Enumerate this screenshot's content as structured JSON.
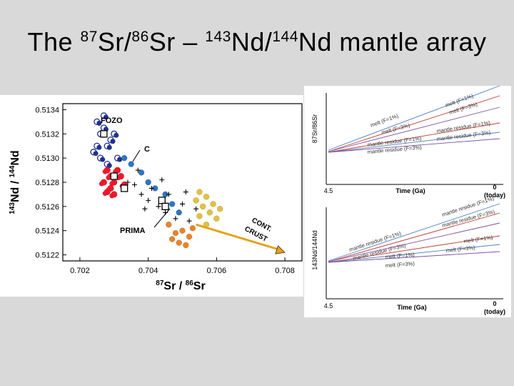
{
  "slide": {
    "title": {
      "prefix": "The ",
      "sr_mass1": "87",
      "sr_text1": "Sr/",
      "sr_mass2": "86",
      "sr_text2": "Sr",
      "dash": " – ",
      "nd_mass1": "143",
      "nd_text1": "Nd/",
      "nd_mass2": "144",
      "nd_text2": "Nd mantle array"
    }
  },
  "chart_data": [
    {
      "type": "scatter",
      "title": "",
      "xlabel": "87Sr / 86Sr",
      "ylabel": "143Nd / 144Nd",
      "xlim": [
        0.7015,
        0.7085
      ],
      "ylim": [
        0.51215,
        0.51345
      ],
      "x_ticks": [
        "0.702",
        "0.704",
        "0.706",
        "0.708"
      ],
      "y_ticks": [
        "0.5122",
        "0.5124",
        "0.5126",
        "0.5128",
        "0.5130",
        "0.5132",
        "0.5134"
      ],
      "grid": false,
      "annotations": {
        "fozo": "FOZO",
        "c": "C",
        "prima": "PRIMA",
        "cont_crust_1": "CONT.",
        "cont_crust_2": "CRUST"
      },
      "series": [
        {
          "color": "#1f2f8f",
          "style": "open-circle-cluster",
          "points": [
            [
              0.7025,
              0.5133
            ],
            [
              0.7026,
              0.5132
            ],
            [
              0.7027,
              0.51325
            ],
            [
              0.7028,
              0.5131
            ],
            [
              0.7024,
              0.51305
            ],
            [
              0.7029,
              0.51315
            ],
            [
              0.7026,
              0.513
            ],
            [
              0.703,
              0.5132
            ],
            [
              0.7027,
              0.51335
            ],
            [
              0.7031,
              0.513
            ],
            [
              0.7025,
              0.5131
            ],
            [
              0.7028,
              0.51295
            ]
          ]
        },
        {
          "color": "#e8192c",
          "style": "filled-circle-cluster",
          "points": [
            [
              0.7028,
              0.5129
            ],
            [
              0.7029,
              0.51285
            ],
            [
              0.703,
              0.5128
            ],
            [
              0.7031,
              0.5129
            ],
            [
              0.7029,
              0.51275
            ],
            [
              0.7032,
              0.51285
            ],
            [
              0.7027,
              0.5128
            ],
            [
              0.7033,
              0.51278
            ],
            [
              0.703,
              0.5127
            ],
            [
              0.7028,
              0.51272
            ]
          ]
        },
        {
          "color": "#2d76c0",
          "style": "filled-circle",
          "points": [
            [
              0.7033,
              0.513
            ],
            [
              0.7035,
              0.51295
            ],
            [
              0.7038,
              0.51288
            ],
            [
              0.704,
              0.5128
            ],
            [
              0.7042,
              0.51275
            ],
            [
              0.7045,
              0.5127
            ],
            [
              0.7047,
              0.51262
            ],
            [
              0.7049,
              0.51255
            ]
          ]
        },
        {
          "color": "#000000",
          "style": "plus",
          "points": [
            [
              0.7034,
              0.5128
            ],
            [
              0.7036,
              0.51278
            ],
            [
              0.7038,
              0.5127
            ],
            [
              0.704,
              0.51265
            ],
            [
              0.7041,
              0.51275
            ],
            [
              0.7043,
              0.5126
            ],
            [
              0.7045,
              0.51255
            ],
            [
              0.7046,
              0.5127
            ],
            [
              0.7048,
              0.5125
            ],
            [
              0.705,
              0.51262
            ],
            [
              0.7052,
              0.51248
            ],
            [
              0.7054,
              0.51258
            ],
            [
              0.7037,
              0.5129
            ],
            [
              0.7044,
              0.51282
            ],
            [
              0.7039,
              0.51258
            ],
            [
              0.7051,
              0.51272
            ]
          ]
        },
        {
          "color": "#e8842a",
          "style": "filled-circle",
          "points": [
            [
              0.7046,
              0.51245
            ],
            [
              0.7048,
              0.51238
            ],
            [
              0.705,
              0.5124
            ],
            [
              0.7052,
              0.51235
            ],
            [
              0.7049,
              0.5123
            ],
            [
              0.7047,
              0.51233
            ],
            [
              0.7053,
              0.51242
            ],
            [
              0.7051,
              0.51228
            ]
          ]
        },
        {
          "color": "#e2c23a",
          "style": "filled-circle",
          "points": [
            [
              0.7054,
              0.51265
            ],
            [
              0.7056,
              0.5126
            ],
            [
              0.7058,
              0.51255
            ],
            [
              0.7057,
              0.51268
            ],
            [
              0.706,
              0.5125
            ],
            [
              0.7055,
              0.51252
            ],
            [
              0.7059,
              0.51262
            ],
            [
              0.7057,
              0.51245
            ],
            [
              0.7061,
              0.51258
            ],
            [
              0.7055,
              0.51272
            ]
          ]
        }
      ],
      "markers": [
        [
          0.7027,
          0.5132
        ],
        [
          0.703,
          0.51285
        ],
        [
          0.7033,
          0.51275
        ],
        [
          0.7044,
          0.51265
        ],
        [
          0.7045,
          0.5126
        ]
      ],
      "trend_arrow": {
        "from": [
          0.7054,
          0.51245
        ],
        "to": [
          0.708,
          0.51222
        ],
        "color": "#e3a21a"
      }
    },
    {
      "type": "line",
      "title": "",
      "xlabel": "Time (Ga)",
      "ylabel": "87Sr/86Sr",
      "x_ticks": [
        "4.5",
        "0",
        "(today)"
      ],
      "line_labels": {
        "melt_1": "melt (F=1%)",
        "melt_3": "melt (F=3%)",
        "melt_a": "melt (F=1%)",
        "melt_b": "melt (F=3%)",
        "res_1": "mantle residue (F=1%)",
        "res_3": "mantle residue (F=3%)",
        "res_a": "mantle residue (F=1%)",
        "res_b": "mantle residue (F=3%)"
      }
    },
    {
      "type": "line",
      "title": "",
      "xlabel": "Time (Ga)",
      "ylabel": "143Nd/144Nd",
      "x_ticks": [
        "4.5",
        "0",
        "(today)"
      ],
      "line_labels": {
        "res_1": "mantle residue (F=1%)",
        "res_3": "mantle residue (F=3%)",
        "res_a": "mantle residue (F=1%)",
        "res_b": "mantle residue (F=3%)",
        "melt_1": "melt (F=1%)",
        "melt_3": "melt (F=3%)",
        "melt_a": "melt (F=1%)",
        "melt_b": "melt (F=3%)"
      }
    }
  ]
}
